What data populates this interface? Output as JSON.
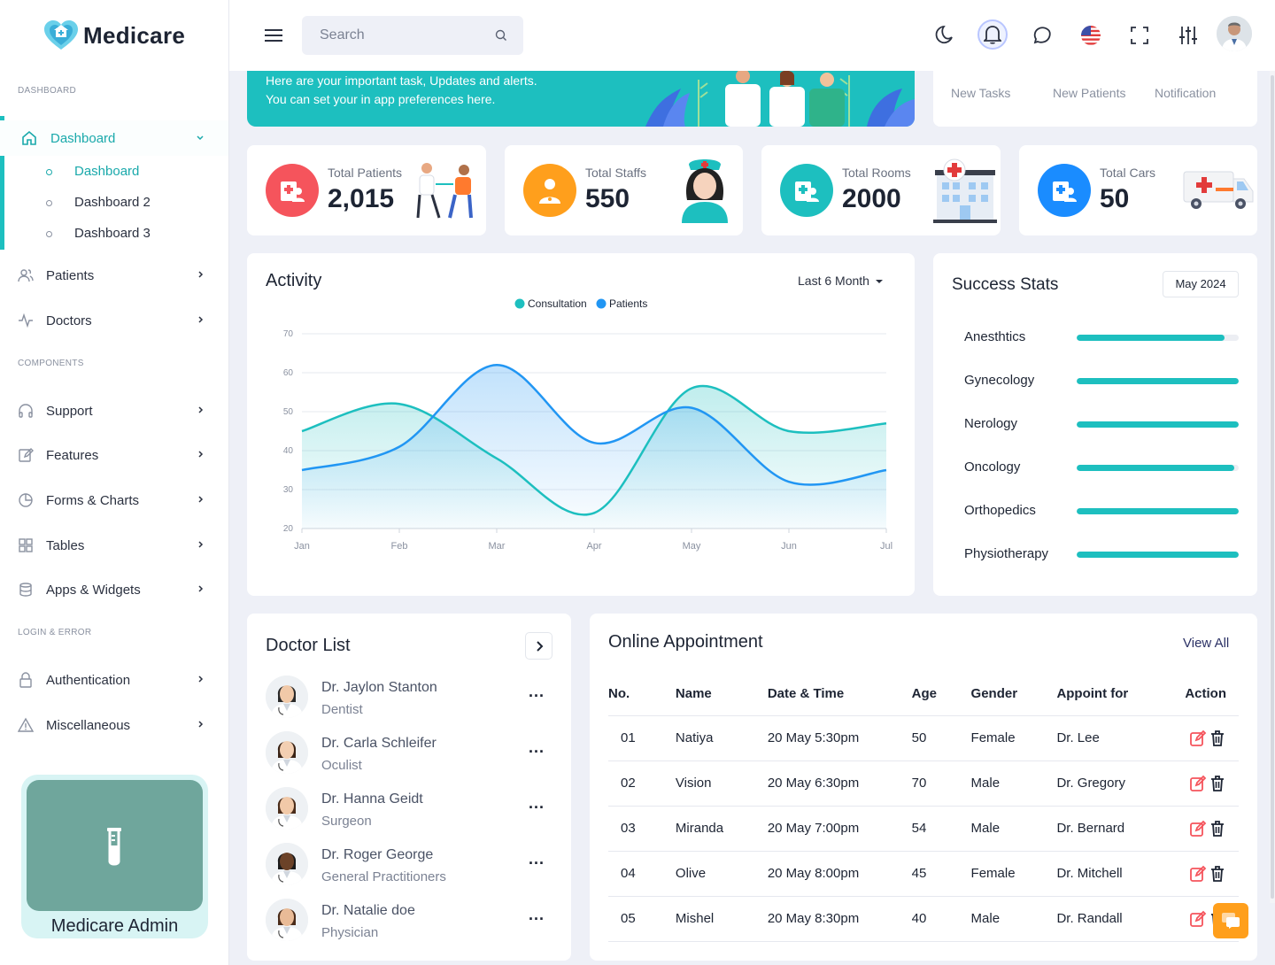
{
  "app": {
    "name": "Medicare"
  },
  "sidebar": {
    "section_dashboard": "DASHBOARD",
    "dashboard_label": "Dashboard",
    "sub_items": [
      "Dashboard",
      "Dashboard 2",
      "Dashboard 3"
    ],
    "patients_label": "Patients",
    "doctors_label": "Doctors",
    "section_components": "COMPONENTS",
    "components": [
      "Support",
      "Features",
      "Forms & Charts",
      "Tables",
      "Apps & Widgets"
    ],
    "section_login": "LOGIN & ERROR",
    "login_items": [
      "Authentication",
      "Miscellaneous"
    ],
    "promo_label": "Medicare Admin"
  },
  "header": {
    "search_placeholder": "Search"
  },
  "banner": {
    "line1": "Here are your important task, Updates and alerts.",
    "line2": "You can set your in app preferences here."
  },
  "tasks_tabs": [
    "New Tasks",
    "New Patients",
    "Notification"
  ],
  "stats": [
    {
      "label": "Total Patients",
      "value": "2,015",
      "color": "#f5545c"
    },
    {
      "label": "Total Staffs",
      "value": "550",
      "color": "#ff9f1c"
    },
    {
      "label": "Total Rooms",
      "value": "2000",
      "color": "#1dbfbf"
    },
    {
      "label": "Total Cars",
      "value": "50",
      "color": "#1a8cff"
    }
  ],
  "activity": {
    "title": "Activity",
    "period": "Last 6 Month"
  },
  "chart_data": {
    "type": "area",
    "categories": [
      "Jan",
      "Feb",
      "Mar",
      "Apr",
      "May",
      "Jun",
      "Jul"
    ],
    "series": [
      {
        "name": "Consultation",
        "color": "#1dbfbf",
        "values": [
          45,
          52,
          38,
          24,
          56,
          45,
          47
        ]
      },
      {
        "name": "Patients",
        "color": "#2196f3",
        "values": [
          35,
          41,
          62,
          42,
          51,
          32,
          35
        ]
      }
    ],
    "yticks": [
      20,
      30,
      40,
      50,
      60,
      70
    ],
    "ylim": [
      20,
      70
    ],
    "legend": "top-center",
    "grid": true
  },
  "success": {
    "title": "Success Stats",
    "month": "May 2024",
    "items": [
      {
        "label": "Anesthtics",
        "value": 0.91
      },
      {
        "label": "Gynecology",
        "value": 1.0
      },
      {
        "label": "Nerology",
        "value": 1.0
      },
      {
        "label": "Oncology",
        "value": 0.97
      },
      {
        "label": "Orthopedics",
        "value": 1.0
      },
      {
        "label": "Physiotherapy",
        "value": 1.0
      }
    ]
  },
  "doctors": {
    "title": "Doctor List",
    "list": [
      {
        "name": "Dr. Jaylon Stanton",
        "spec": "Dentist"
      },
      {
        "name": "Dr. Carla Schleifer",
        "spec": "Oculist"
      },
      {
        "name": "Dr. Hanna Geidt",
        "spec": "Surgeon"
      },
      {
        "name": "Dr. Roger George",
        "spec": "General Practitioners"
      },
      {
        "name": "Dr. Natalie doe",
        "spec": "Physician"
      }
    ],
    "more": "..."
  },
  "appointments": {
    "title": "Online Appointment",
    "view_all": "View All",
    "columns": [
      "No.",
      "Name",
      "Date & Time",
      "Age",
      "Gender",
      "Appoint for",
      "Action"
    ],
    "rows": [
      [
        "01",
        "Natiya",
        "20 May 5:30pm",
        "50",
        "Female",
        "Dr. Lee"
      ],
      [
        "02",
        "Vision",
        "20 May 6:30pm",
        "70",
        "Male",
        "Dr. Gregory"
      ],
      [
        "03",
        "Miranda",
        "20 May 7:00pm",
        "54",
        "Male",
        "Dr. Bernard"
      ],
      [
        "04",
        "Olive",
        "20 May 8:00pm",
        "45",
        "Female",
        "Dr. Mitchell"
      ],
      [
        "05",
        "Mishel",
        "20 May 8:30pm",
        "40",
        "Male",
        "Dr. Randall"
      ]
    ]
  }
}
